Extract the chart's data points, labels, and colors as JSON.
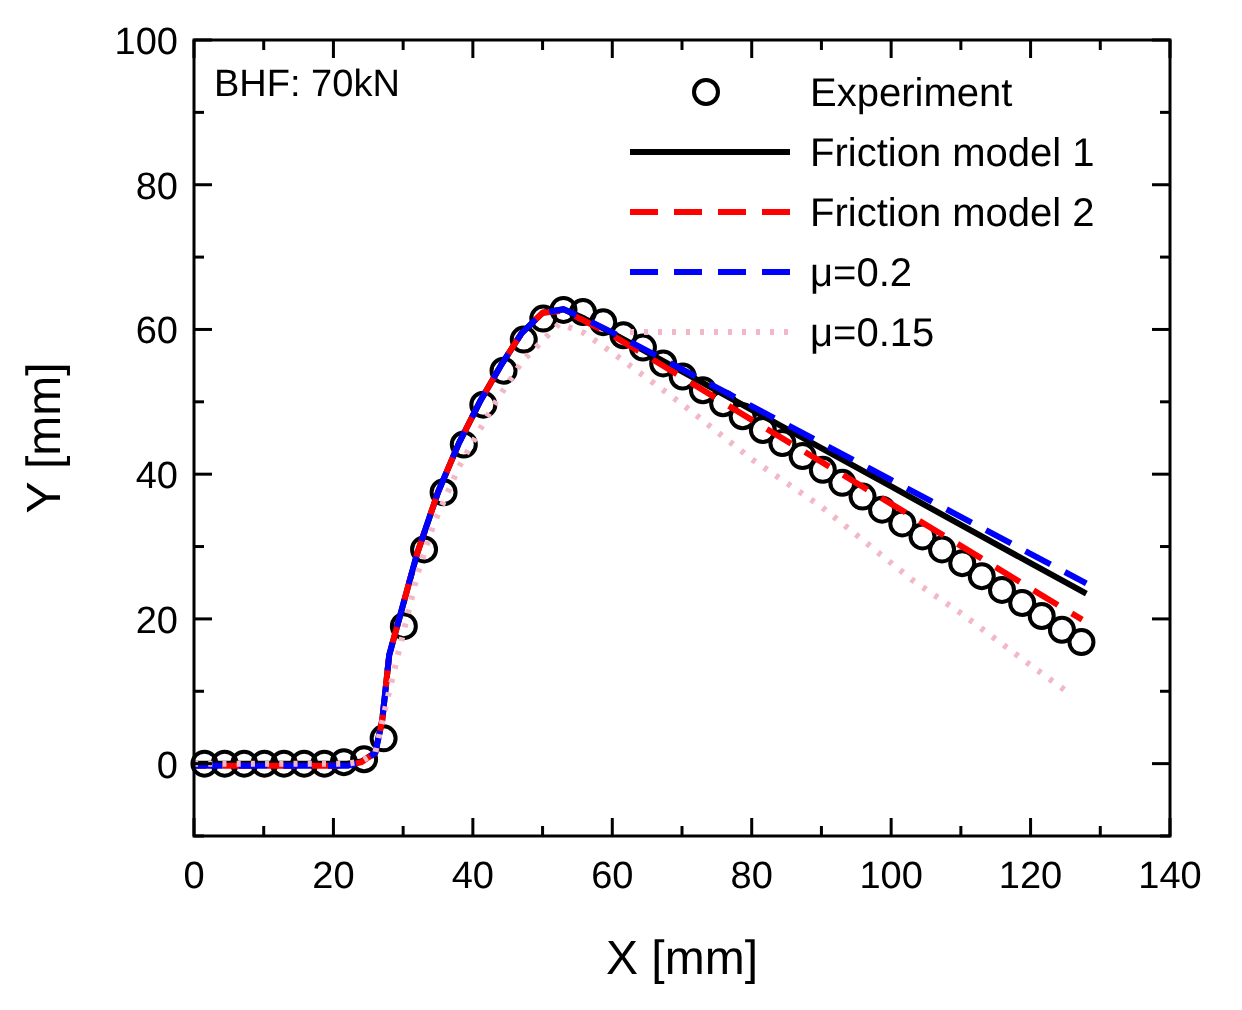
{
  "chart_data": {
    "type": "line",
    "xlabel": "X [mm]",
    "ylabel": "Y [mm]",
    "annotations": [
      "BHF: 70kN"
    ],
    "xlim": [
      0,
      140
    ],
    "ylim": [
      -10,
      100
    ],
    "xticks": [
      0,
      {
        "value": 10,
        "label": null
      },
      20,
      {
        "value": 30,
        "label": null
      },
      40,
      {
        "value": 50,
        "label": null
      },
      60,
      {
        "value": 70,
        "label": null
      },
      80,
      {
        "value": 90,
        "label": null
      },
      100,
      {
        "value": 110,
        "label": null
      },
      120,
      {
        "value": 130,
        "label": null
      },
      140
    ],
    "yticks": [
      {
        "value": -10,
        "label": null
      },
      0,
      {
        "value": 10,
        "label": null
      },
      20,
      {
        "value": 30,
        "label": null
      },
      40,
      {
        "value": 50,
        "label": null
      },
      60,
      {
        "value": 70,
        "label": null
      },
      80,
      {
        "value": 90,
        "label": null
      },
      100
    ],
    "grid": false,
    "legend": "top right",
    "series": [
      {
        "name": "Experiment",
        "type": "scatter",
        "marker": "circle",
        "color": "#000000",
        "x": [
          1.5,
          4.4,
          7.2,
          10.1,
          12.9,
          15.8,
          18.7,
          21.5,
          24.4,
          27.2,
          30.1,
          33,
          35.8,
          38.7,
          41.5,
          44.4,
          47.3,
          50.1,
          53,
          55.8,
          58.7,
          61.6,
          64.4,
          67.3,
          70.1,
          73,
          75.9,
          78.7,
          81.6,
          84.4,
          87.3,
          90.2,
          93,
          95.9,
          98.7,
          101.6,
          104.5,
          107.3,
          110.2,
          113,
          115.9,
          118.8,
          121.6,
          124.5,
          127.3
        ],
        "values": [
          0,
          0,
          0,
          0,
          0,
          0,
          0,
          0.2,
          0.6,
          3.5,
          19,
          29.6,
          37.5,
          44.1,
          49.6,
          54.3,
          58.6,
          61.5,
          62.7,
          62.4,
          61,
          59.2,
          57.5,
          55.3,
          53.5,
          51.6,
          49.8,
          48,
          46.1,
          44.3,
          42.5,
          40.6,
          38.8,
          36.9,
          35.1,
          33.2,
          31.4,
          29.6,
          27.7,
          25.9,
          24,
          22.2,
          20.4,
          18.5,
          16.8
        ]
      },
      {
        "name": "Friction model 1",
        "type": "line",
        "line_style": "solid",
        "color": "#000000",
        "x": [
          0,
          22,
          24,
          26,
          27,
          28,
          30,
          32,
          35,
          38,
          41,
          44,
          47,
          50,
          53,
          56,
          60,
          70,
          80,
          90,
          100,
          110,
          120,
          128
        ],
        "values": [
          0,
          0,
          0.3,
          1.5,
          6,
          15,
          22,
          29,
          37.5,
          44.3,
          50,
          55,
          59.5,
          62.3,
          62.8,
          61.5,
          59.5,
          54.2,
          48.9,
          43.6,
          38.3,
          33,
          27.7,
          23.5
        ]
      },
      {
        "name": "Friction model 2",
        "type": "line",
        "line_style": "dashed",
        "color": "#ff0000",
        "x": [
          0,
          22,
          24,
          26,
          27,
          28,
          30,
          32,
          35,
          38,
          41,
          44,
          47,
          50,
          53,
          56,
          60,
          70,
          80,
          90,
          100,
          110,
          120,
          127.4
        ],
        "values": [
          -0.3,
          -0.3,
          0.2,
          1.5,
          6,
          15,
          22,
          29,
          37.5,
          44.3,
          50,
          55,
          59.5,
          62.3,
          62.6,
          61.2,
          59.2,
          53.4,
          47.5,
          41.7,
          35.9,
          30.1,
          24.2,
          19.9
        ]
      },
      {
        "name": "μ=0.2",
        "type": "line",
        "line_style": "dashed",
        "color": "#0000ff",
        "x": [
          0,
          22,
          24,
          26,
          27,
          28,
          30,
          32,
          35,
          38,
          41,
          44,
          47,
          50,
          53,
          56,
          60,
          70,
          80,
          90,
          100,
          110,
          120,
          128
        ],
        "values": [
          -0.3,
          -0.3,
          0.2,
          1.5,
          6,
          15,
          22,
          29,
          37.5,
          44.3,
          50,
          55,
          59.5,
          62.3,
          62.8,
          61.5,
          59.6,
          54.5,
          49.4,
          44.3,
          39.2,
          34.1,
          29,
          24.9
        ]
      },
      {
        "name": "μ=0.15",
        "type": "line",
        "line_style": "dotted",
        "color": "#f2b8c6",
        "x": [
          0,
          22,
          24,
          26,
          28,
          30,
          32,
          34.3,
          38,
          42.9,
          47,
          52.4,
          56,
          60,
          70,
          80.1,
          90,
          103,
          110,
          120,
          126
        ],
        "values": [
          0,
          0,
          0.3,
          1.5,
          10,
          18,
          26,
          32.9,
          41,
          49.4,
          55.5,
          60.8,
          59.5,
          56.8,
          49.7,
          42,
          35.5,
          25.4,
          20.8,
          13.6,
          9.4
        ]
      }
    ]
  }
}
